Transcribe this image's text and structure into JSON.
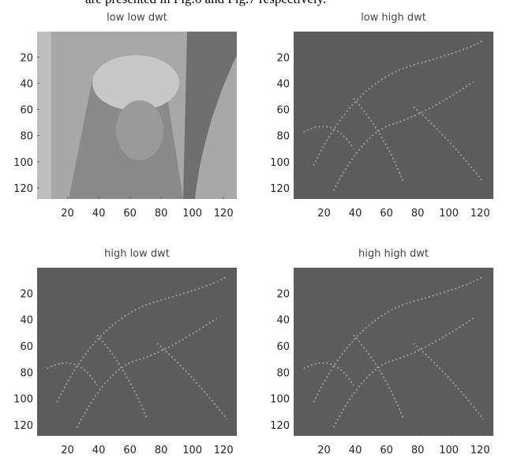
{
  "caption_fragment": "are presented in Fig.6 and Fig.7 respectively.",
  "figure": {
    "panels": [
      {
        "title": "low low dwt",
        "xlim": [
          0.5,
          128.5
        ],
        "ylim": [
          0.5,
          128.5
        ],
        "xticks": [
          20,
          40,
          60,
          80,
          100,
          120
        ],
        "yticks": [
          20,
          40,
          60,
          80,
          100,
          120
        ]
      },
      {
        "title": "low high dwt",
        "xlim": [
          0.5,
          128.5
        ],
        "ylim": [
          0.5,
          128.5
        ],
        "xticks": [
          20,
          40,
          60,
          80,
          100,
          120
        ],
        "yticks": [
          20,
          40,
          60,
          80,
          100,
          120
        ]
      },
      {
        "title": "high low dwt",
        "xlim": [
          0.5,
          128.5
        ],
        "ylim": [
          0.5,
          128.5
        ],
        "xticks": [
          20,
          40,
          60,
          80,
          100,
          120
        ],
        "yticks": [
          20,
          40,
          60,
          80,
          100,
          120
        ]
      },
      {
        "title": "high high dwt",
        "xlim": [
          0.5,
          128.5
        ],
        "ylim": [
          0.5,
          128.5
        ],
        "xticks": [
          20,
          40,
          60,
          80,
          100,
          120
        ],
        "yticks": [
          20,
          40,
          60,
          80,
          100,
          120
        ]
      }
    ]
  }
}
